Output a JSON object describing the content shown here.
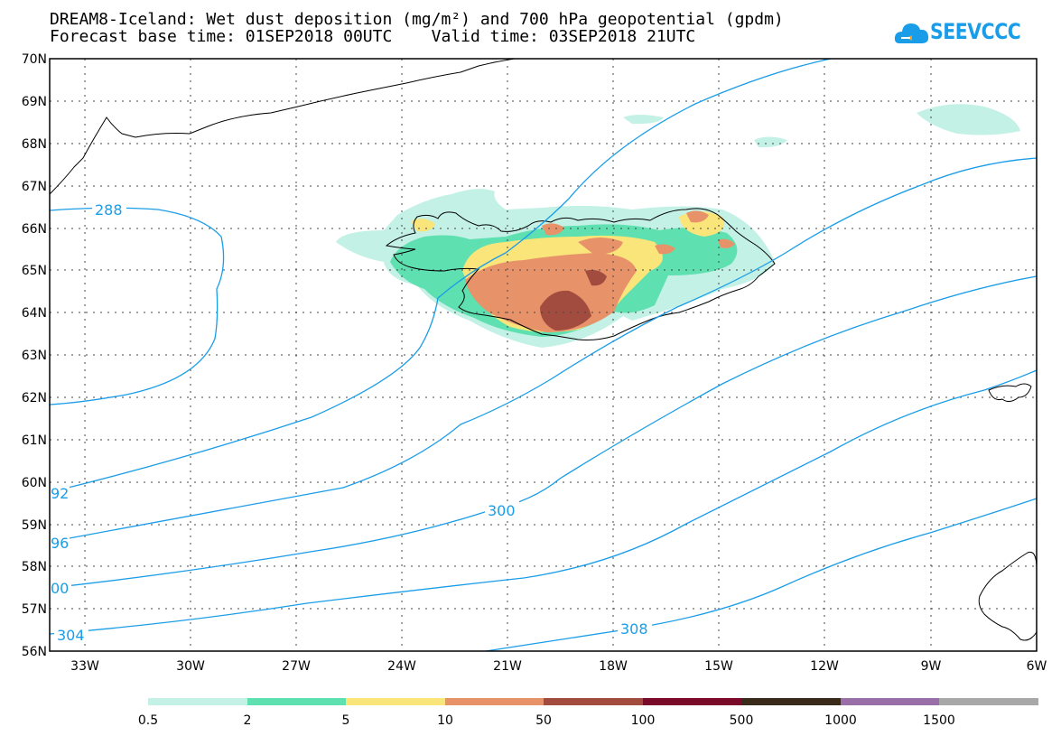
{
  "header": {
    "title_line1": "DREAM8-Iceland: Wet dust deposition (mg/m²) and 700 hPa geopotential (gpdm)",
    "base_time_label": "Forecast base time: 01SEP2018 00UTC",
    "valid_time_label": "Valid time: 03SEP2018 21UTC"
  },
  "logo": {
    "text": "SEEVCCC",
    "icon": "cloud-icon"
  },
  "colors": {
    "contour": "#1a9de8",
    "c0": "#c3f1e6",
    "c1": "#5ee0b0",
    "c2": "#f9e57a",
    "c3": "#e8926a",
    "c4": "#a24b3f",
    "c5": "#7a0a2a",
    "c6": "#3a2a1a",
    "c7": "#9a6fa8",
    "c8": "#a8a8a8"
  },
  "axes": {
    "lat_labels": [
      "70N",
      "69N",
      "68N",
      "67N",
      "66N",
      "65N",
      "64N",
      "63N",
      "62N",
      "61N",
      "60N",
      "59N",
      "58N",
      "57N",
      "56N"
    ],
    "lon_labels": [
      "33W",
      "30W",
      "27W",
      "24W",
      "21W",
      "18W",
      "15W",
      "12W",
      "9W",
      "6W"
    ]
  },
  "contours": {
    "labels": [
      "288",
      "92",
      "96",
      "00",
      "304",
      "300",
      "308"
    ]
  },
  "colorbar": {
    "labels": [
      "0.5",
      "2",
      "5",
      "10",
      "50",
      "100",
      "500",
      "1000",
      "1500"
    ],
    "colors": [
      "#c3f1e6",
      "#5ee0b0",
      "#f9e57a",
      "#e8926a",
      "#a24b3f",
      "#7a0a2a",
      "#3a2a1a",
      "#9a6fa8",
      "#a8a8a8"
    ]
  }
}
